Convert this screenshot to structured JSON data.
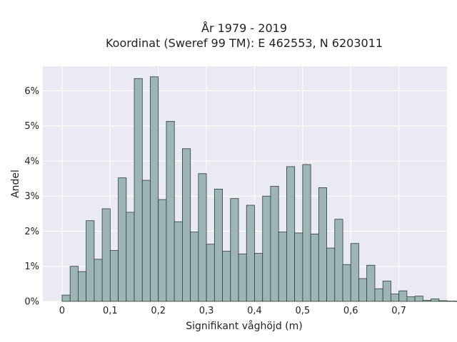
{
  "chart_data": {
    "type": "bar",
    "title_line1": "År 1979 - 2019",
    "title_line2": "Koordinat (Sweref 99 TM): E 462553, N 6203011",
    "xlabel": "Signifikant våghöjd (m)",
    "ylabel": "Andel",
    "bin_width": 0.0167,
    "xlim": [
      -0.04,
      0.8
    ],
    "ylim": [
      0,
      6.7
    ],
    "x_ticks": [
      {
        "value": 0.0,
        "label": "0"
      },
      {
        "value": 0.1,
        "label": "0,1"
      },
      {
        "value": 0.2,
        "label": "0,2"
      },
      {
        "value": 0.3,
        "label": "0,3"
      },
      {
        "value": 0.4,
        "label": "0,4"
      },
      {
        "value": 0.5,
        "label": "0,5"
      },
      {
        "value": 0.6,
        "label": "0,6"
      },
      {
        "value": 0.7,
        "label": "0,7"
      }
    ],
    "y_ticks": [
      {
        "value": 0,
        "label": "0%"
      },
      {
        "value": 1,
        "label": "1%"
      },
      {
        "value": 2,
        "label": "2%"
      },
      {
        "value": 3,
        "label": "3%"
      },
      {
        "value": 4,
        "label": "4%"
      },
      {
        "value": 5,
        "label": "5%"
      },
      {
        "value": 6,
        "label": "6%"
      }
    ],
    "bin_starts": [
      0.0,
      0.0167,
      0.0333,
      0.05,
      0.0667,
      0.0833,
      0.1,
      0.1167,
      0.1333,
      0.15,
      0.1667,
      0.1833,
      0.2,
      0.2167,
      0.2333,
      0.25,
      0.2667,
      0.2833,
      0.3,
      0.3167,
      0.3333,
      0.35,
      0.3667,
      0.3833,
      0.4,
      0.4167,
      0.4333,
      0.45,
      0.4667,
      0.4833,
      0.5,
      0.5167,
      0.5333,
      0.55,
      0.5667,
      0.5833,
      0.6,
      0.6167,
      0.6333,
      0.65,
      0.6667,
      0.6833,
      0.7,
      0.7167,
      0.7333
    ],
    "values": [
      0.18,
      1.0,
      0.85,
      2.3,
      1.2,
      2.64,
      1.45,
      3.52,
      2.54,
      6.35,
      3.45,
      6.4,
      2.9,
      5.13,
      2.27,
      4.35,
      1.98,
      3.64,
      1.63,
      3.2,
      1.43,
      2.93,
      1.35,
      2.74,
      1.37,
      3.0,
      3.28,
      1.98,
      3.84,
      1.95,
      3.9,
      1.92,
      3.24,
      1.52,
      2.34,
      1.05,
      1.65,
      0.65,
      1.03,
      0.36,
      0.58,
      0.21,
      0.3,
      0.13,
      0.15
    ],
    "tail_values": [
      0.03,
      0.07,
      0.02,
      0.01,
      0.005
    ],
    "colors": {
      "bar_fill": "#9db5b4",
      "bar_edge": "#2f3b3b",
      "plot_background": "#eaeaf2",
      "grid": "#ffffff"
    },
    "grid": true
  }
}
